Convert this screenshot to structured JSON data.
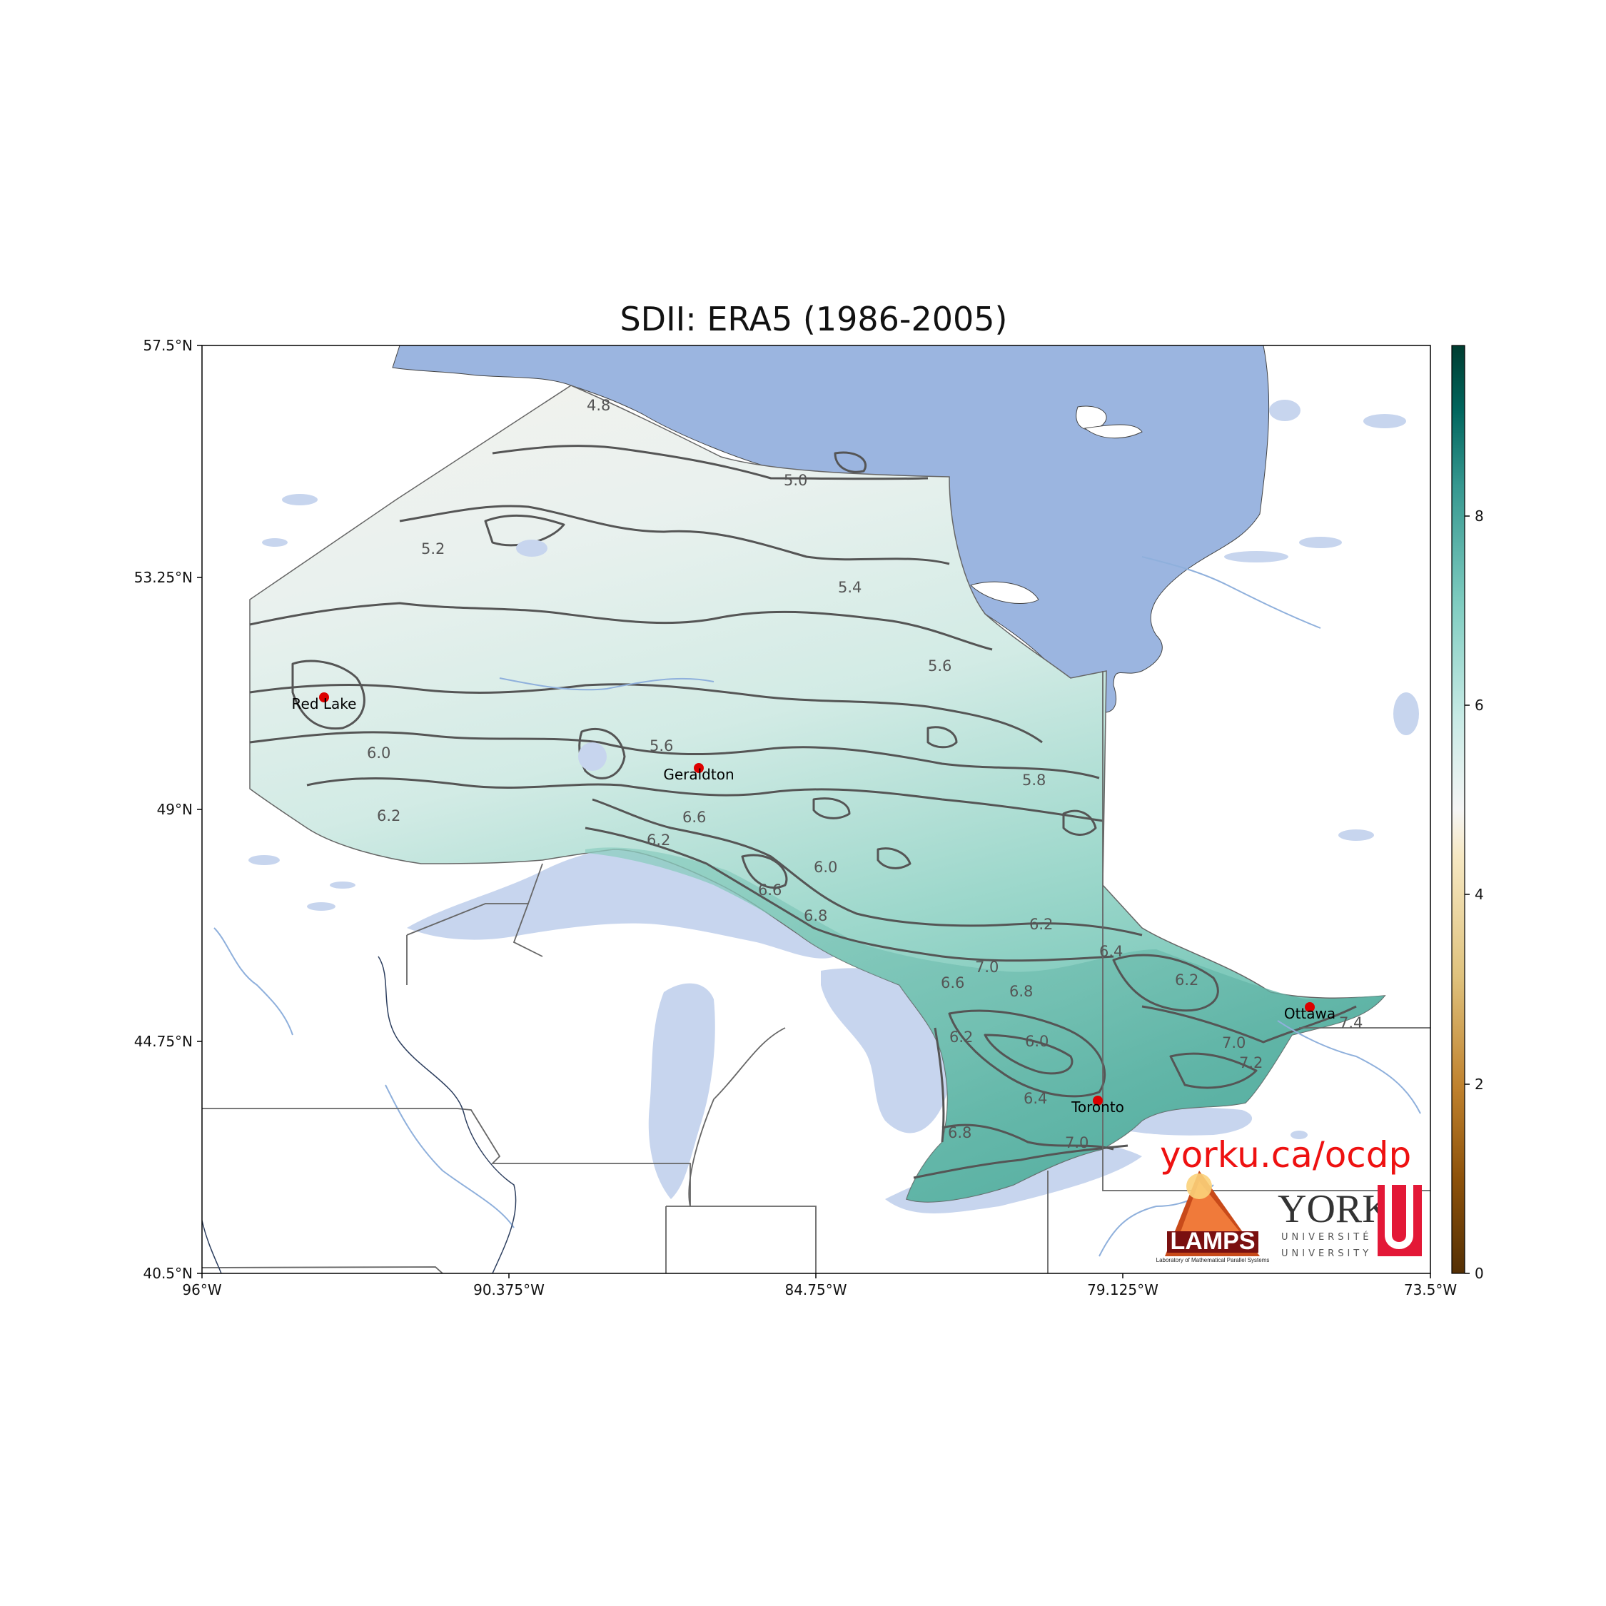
{
  "map": {
    "title": "SDII: ERA5 (1986-2005)",
    "lat_ticks": [
      "57.5°N",
      "53.25°N",
      "49°N",
      "44.75°N",
      "40.5°N"
    ],
    "lon_ticks": [
      "96°W",
      "90.375°W",
      "84.75°W",
      "79.125°W",
      "73.5°W"
    ],
    "extent": {
      "lon_min": -96,
      "lon_max": -73.5,
      "lat_min": 40.5,
      "lat_max": 57.5
    },
    "cities": [
      {
        "name": "Red Lake",
        "lon": -93.8,
        "lat": 51.0
      },
      {
        "name": "Geraldton",
        "lon": -86.9,
        "lat": 49.7
      },
      {
        "name": "Toronto",
        "lon": -79.6,
        "lat": 43.7
      },
      {
        "name": "Ottawa",
        "lon": -75.7,
        "lat": 45.4
      }
    ],
    "contour_labels": [
      "4.8",
      "5.0",
      "5.2",
      "5.4",
      "5.6",
      "5.6",
      "5.8",
      "6.0",
      "6.2",
      "6.2",
      "6.6",
      "6.8",
      "6.0",
      "6.6",
      "6.2",
      "7.0",
      "6.6",
      "6.8",
      "6.4",
      "6.2",
      "6.2",
      "6.0",
      "7.0",
      "7.2",
      "7.4",
      "6.4",
      "7.0",
      "6.8"
    ],
    "colors": {
      "water": "#9bb5e0",
      "lake_light": "#c7d5ee",
      "river": "#8fb0dc",
      "contour": "#555555",
      "city_marker": "#dd0000",
      "url_text": "#ee1111"
    }
  },
  "colorbar": {
    "ticks": [
      "0",
      "2",
      "4",
      "6",
      "8"
    ],
    "min": 0,
    "max": 9.8,
    "colormap": "BrBG"
  },
  "branding": {
    "url": "yorku.ca/ocdp",
    "lamps_logo_text": "LAMPS",
    "lamps_logo_subtext": "Laboratory of Mathematical Parallel Systems",
    "york_logo_text": "YORK",
    "york_logo_sub": "UNIVERSITÉ\nUNIVERSITY"
  }
}
